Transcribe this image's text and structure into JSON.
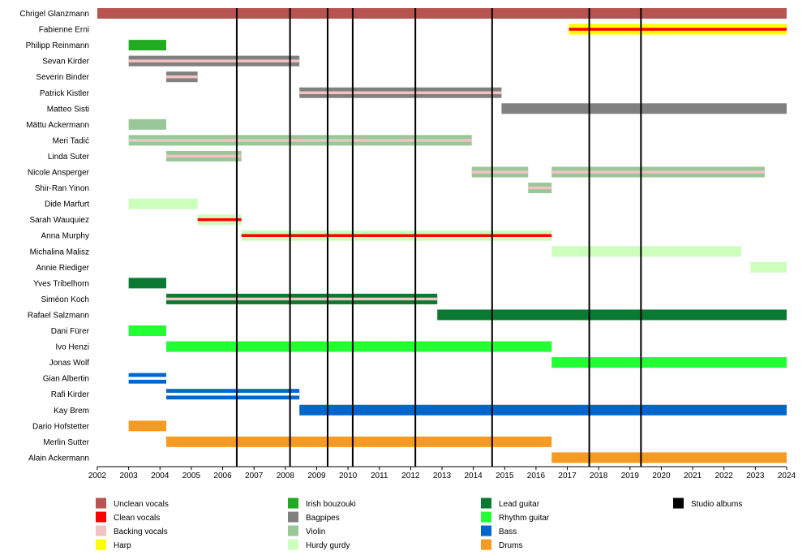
{
  "chart_data": {
    "type": "timeline",
    "title": "",
    "xlabel": "",
    "ylabel": "",
    "xlim": [
      2002,
      2024
    ],
    "grid": false,
    "legend_position": "bottom",
    "roles": [
      {
        "id": "unclean",
        "label": "Unclean vocals",
        "color": "#b85450"
      },
      {
        "id": "clean",
        "label": "Clean vocals",
        "color": "#ff0000"
      },
      {
        "id": "backing",
        "label": "Backing vocals",
        "color": "#f4c2c2"
      },
      {
        "id": "harp",
        "label": "Harp",
        "color": "#ffff00"
      },
      {
        "id": "bouzouki",
        "label": "Irish bouzouki",
        "color": "#22aa22"
      },
      {
        "id": "bagpipes",
        "label": "Bagpipes",
        "color": "#808080"
      },
      {
        "id": "violin",
        "label": "Violin",
        "color": "#99c799"
      },
      {
        "id": "hurdy",
        "label": "Hurdy gurdy",
        "color": "#ccffbb"
      },
      {
        "id": "lead",
        "label": "Lead guitar",
        "color": "#0a7a32"
      },
      {
        "id": "rhythm",
        "label": "Rhythm guitar",
        "color": "#22ff33"
      },
      {
        "id": "bass",
        "label": "Bass",
        "color": "#0066cc"
      },
      {
        "id": "drums",
        "label": "Drums",
        "color": "#f59a23"
      },
      {
        "id": "albums",
        "label": "Studio albums",
        "color": "#000000"
      }
    ],
    "members": [
      {
        "name": "Chrigel Glanzmann",
        "bars": [
          {
            "start": 2002.0,
            "end": 2024.0,
            "main": "unclean"
          }
        ]
      },
      {
        "name": "Fabienne Erni",
        "bars": [
          {
            "start": 2017.05,
            "end": 2024.0,
            "main": "harp",
            "inner": "clean"
          }
        ]
      },
      {
        "name": "Philipp Reinmann",
        "bars": [
          {
            "start": 2003.0,
            "end": 2004.2,
            "main": "bouzouki"
          }
        ]
      },
      {
        "name": "Sevan Kirder",
        "bars": [
          {
            "start": 2003.0,
            "end": 2008.45,
            "main": "bagpipes",
            "inner": "backing"
          }
        ]
      },
      {
        "name": "Severin Binder",
        "bars": [
          {
            "start": 2004.2,
            "end": 2005.2,
            "main": "bagpipes",
            "inner": "backing"
          }
        ]
      },
      {
        "name": "Patrick Kistler",
        "bars": [
          {
            "start": 2008.45,
            "end": 2014.9,
            "main": "bagpipes",
            "inner": "backing"
          }
        ]
      },
      {
        "name": "Matteo Sisti",
        "bars": [
          {
            "start": 2014.9,
            "end": 2024.0,
            "main": "bagpipes"
          }
        ]
      },
      {
        "name": "Mättu Ackermann",
        "bars": [
          {
            "start": 2003.0,
            "end": 2004.2,
            "main": "violin"
          }
        ]
      },
      {
        "name": "Meri Tadić",
        "bars": [
          {
            "start": 2003.0,
            "end": 2013.95,
            "main": "violin",
            "inner": "backing"
          }
        ]
      },
      {
        "name": "Linda Suter",
        "bars": [
          {
            "start": 2004.2,
            "end": 2006.6,
            "main": "violin",
            "inner": "backing"
          }
        ]
      },
      {
        "name": "Nicole Ansperger",
        "bars": [
          {
            "start": 2013.95,
            "end": 2015.75,
            "main": "violin",
            "inner": "backing"
          },
          {
            "start": 2016.5,
            "end": 2023.3,
            "main": "violin",
            "inner": "backing"
          }
        ]
      },
      {
        "name": "Shir-Ran Yinon",
        "bars": [
          {
            "start": 2015.75,
            "end": 2016.5,
            "main": "violin",
            "inner": "backing"
          }
        ]
      },
      {
        "name": "Dide Marfurt",
        "bars": [
          {
            "start": 2003.0,
            "end": 2005.2,
            "main": "hurdy"
          }
        ]
      },
      {
        "name": "Sarah Wauquiez",
        "bars": [
          {
            "start": 2005.2,
            "end": 2006.6,
            "main": "hurdy",
            "inner": "clean"
          }
        ]
      },
      {
        "name": "Anna Murphy",
        "bars": [
          {
            "start": 2006.6,
            "end": 2016.5,
            "main": "hurdy",
            "inner": "clean"
          }
        ]
      },
      {
        "name": "Michalina Malisz",
        "bars": [
          {
            "start": 2016.5,
            "end": 2022.55,
            "main": "hurdy"
          }
        ]
      },
      {
        "name": "Annie Riediger",
        "bars": [
          {
            "start": 2022.85,
            "end": 2024.0,
            "main": "hurdy"
          }
        ]
      },
      {
        "name": "Yves Tribelhorn",
        "bars": [
          {
            "start": 2003.0,
            "end": 2004.2,
            "main": "lead"
          }
        ]
      },
      {
        "name": "Siméon Koch",
        "bars": [
          {
            "start": 2004.2,
            "end": 2012.85,
            "main": "lead",
            "inner": "backing"
          }
        ]
      },
      {
        "name": "Rafael Salzmann",
        "bars": [
          {
            "start": 2012.85,
            "end": 2024.0,
            "main": "lead"
          }
        ]
      },
      {
        "name": "Dani Fürer",
        "bars": [
          {
            "start": 2003.0,
            "end": 2004.2,
            "main": "rhythm"
          }
        ]
      },
      {
        "name": "Ivo Henzi",
        "bars": [
          {
            "start": 2004.2,
            "end": 2016.5,
            "main": "rhythm"
          }
        ]
      },
      {
        "name": "Jonas Wolf",
        "bars": [
          {
            "start": 2016.5,
            "end": 2024.0,
            "main": "rhythm"
          }
        ]
      },
      {
        "name": "Gian Albertin",
        "bars": [
          {
            "start": 2003.0,
            "end": 2004.2,
            "main": "bass",
            "inner": "white"
          }
        ]
      },
      {
        "name": "Rafi Kirder",
        "bars": [
          {
            "start": 2004.2,
            "end": 2008.45,
            "main": "bass",
            "inner": "white"
          }
        ]
      },
      {
        "name": "Kay Brem",
        "bars": [
          {
            "start": 2008.45,
            "end": 2024.0,
            "main": "bass"
          }
        ]
      },
      {
        "name": "Dario Hofstetter",
        "bars": [
          {
            "start": 2003.0,
            "end": 2004.2,
            "main": "drums"
          }
        ]
      },
      {
        "name": "Merlin Sutter",
        "bars": [
          {
            "start": 2004.2,
            "end": 2016.5,
            "main": "drums"
          }
        ]
      },
      {
        "name": "Alain Ackermann",
        "bars": [
          {
            "start": 2016.5,
            "end": 2024.0,
            "main": "drums"
          }
        ]
      }
    ],
    "albums": [
      2006.45,
      2008.15,
      2009.35,
      2010.15,
      2012.15,
      2014.6,
      2017.7,
      2019.35
    ],
    "ticks": [
      "2002",
      "2003",
      "2004",
      "2005",
      "2006",
      "2007",
      "2008",
      "2009",
      "2010",
      "2011",
      "2012",
      "2013",
      "2014",
      "2015",
      "2016",
      "2017",
      "2018",
      "2019",
      "2020",
      "2021",
      "2022",
      "2023",
      "2024"
    ]
  }
}
